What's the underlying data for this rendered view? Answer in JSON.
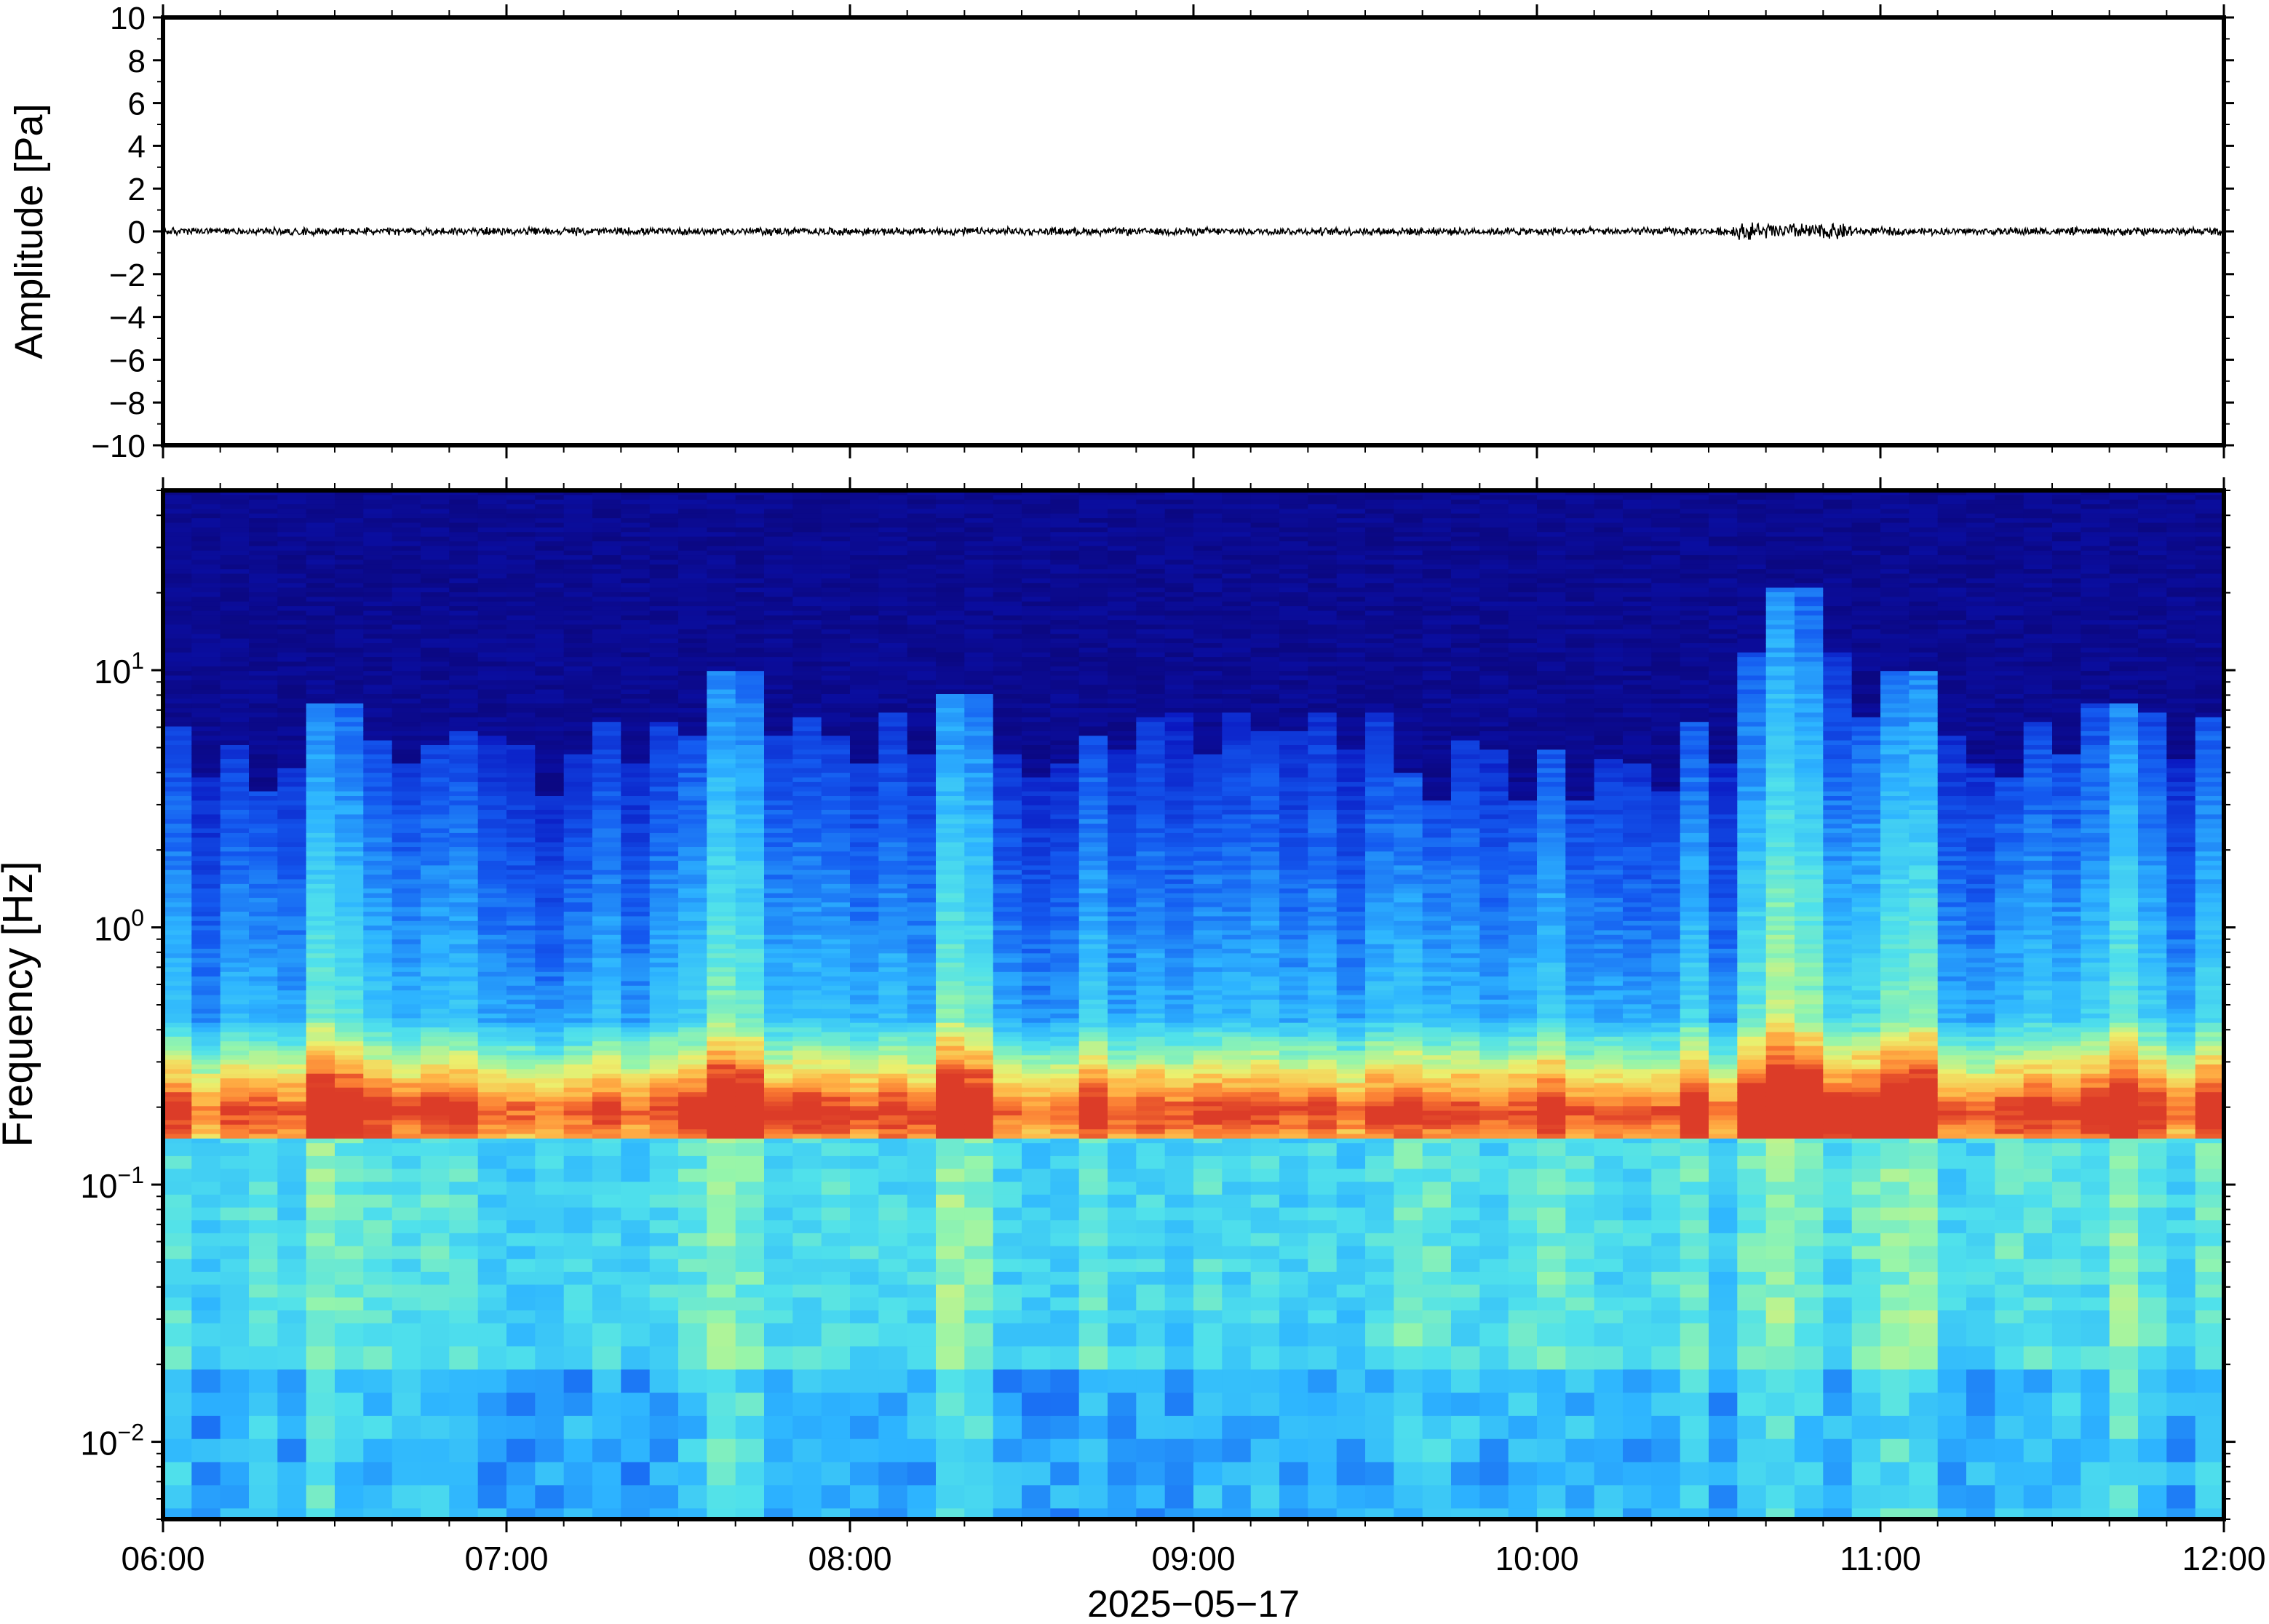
{
  "chart_data": [
    {
      "type": "line",
      "ylabel": "Amplitude [Pa]",
      "ylim": [
        -10,
        10
      ],
      "yticks": [
        10,
        8,
        6,
        4,
        2,
        0,
        -2,
        -4,
        -6,
        -8,
        -10
      ],
      "ytick_labels": [
        "10",
        "8",
        "6",
        "4",
        "2",
        "0",
        "−2",
        "−4",
        "−6",
        "−8",
        "−10"
      ],
      "series": [
        {
          "x_start": "06:00",
          "x_end": "12:00",
          "y_approx": 0,
          "noise_amplitude": 0.15,
          "color": "#000000"
        }
      ],
      "grid": false
    },
    {
      "type": "heatmap",
      "ylabel": "Frequency [Hz]",
      "y_scale": "log",
      "ylim": [
        0.005,
        50
      ],
      "yticks": [
        {
          "base": "10",
          "exp": "1",
          "value": 10
        },
        {
          "base": "10",
          "exp": "0",
          "value": 1
        },
        {
          "base": "10",
          "exp": "−1",
          "value": 0.1
        },
        {
          "base": "10",
          "exp": "−2",
          "value": 0.01
        }
      ],
      "x_start": "06:00",
      "x_end": "12:00",
      "colormap": "jet",
      "dominant_band_hz": [
        0.15,
        0.25
      ],
      "energy_bursts": [
        {
          "time": "06:30",
          "top_hz": 9
        },
        {
          "time": "07:40",
          "top_hz": 12
        },
        {
          "time": "08:20",
          "top_hz": 10
        },
        {
          "time": "10:45",
          "top_hz": 25
        },
        {
          "time": "11:05",
          "top_hz": 12
        },
        {
          "time": "11:40",
          "top_hz": 9
        }
      ],
      "xticks": [
        "06:00",
        "07:00",
        "08:00",
        "09:00",
        "10:00",
        "11:00",
        "12:00"
      ],
      "xlabel": "2025−05−17"
    }
  ],
  "colors": {
    "background_low": "#0b0575",
    "mid_cyan": "#33c6ff",
    "band_orange": "#ff8c3a",
    "axis": "#000000"
  }
}
